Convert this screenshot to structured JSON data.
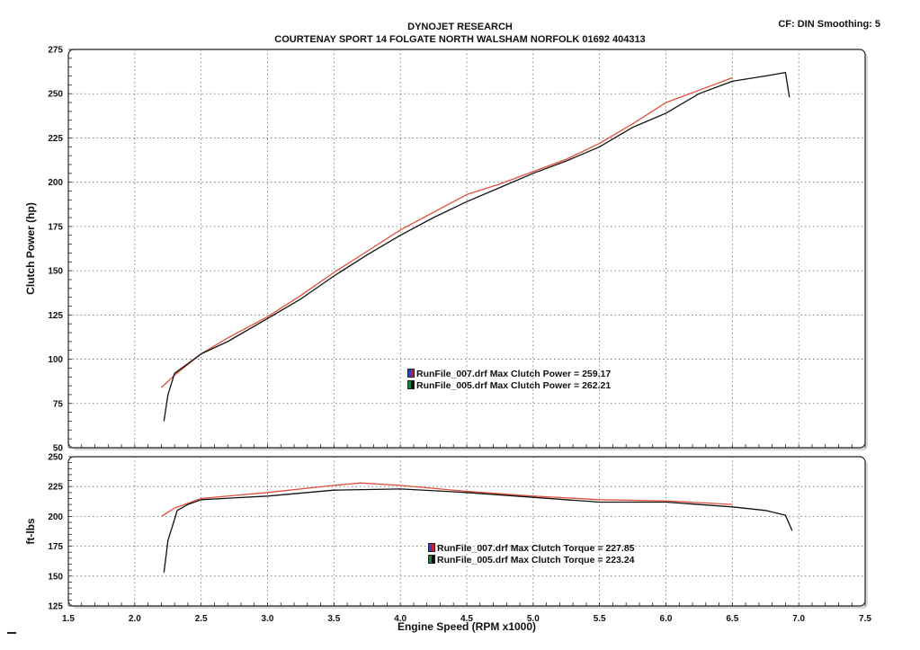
{
  "header": {
    "title": "DYNOJET RESEARCH",
    "subtitle": "COURTENAY SPORT 14 FOLGATE NORTH WALSHAM NORFOLK 01692 404313",
    "cf": "CF: DIN  Smoothing: 5"
  },
  "legend_power": [
    {
      "text": "RunFile_007.drf Max Clutch Power = 259.17",
      "swatch": [
        "#3040c0",
        "#c02030"
      ]
    },
    {
      "text": "RunFile_005.drf Max Clutch Power = 262.21",
      "swatch": [
        "#208040",
        "#111111"
      ]
    }
  ],
  "legend_torque": [
    {
      "text": "RunFile_007.drf Max Clutch Torque = 227.85",
      "swatch": [
        "#3040c0",
        "#c02030"
      ]
    },
    {
      "text": "RunFile_005.drf Max Clutch Torque = 223.24",
      "swatch": [
        "#208040",
        "#111111"
      ]
    }
  ],
  "chart_data": [
    {
      "type": "line",
      "ylabel": "Clutch Power (hp)",
      "xlim": [
        1.5,
        7.5
      ],
      "ylim": [
        50,
        275
      ],
      "yticks": [
        50,
        75,
        100,
        125,
        150,
        175,
        200,
        225,
        250,
        275
      ],
      "grid": true,
      "series": [
        {
          "name": "RunFile_007.drf",
          "color": "#e0503a",
          "x": [
            2.2,
            2.3,
            2.5,
            2.7,
            3.0,
            3.25,
            3.5,
            3.75,
            4.0,
            4.25,
            4.5,
            4.75,
            5.0,
            5.25,
            5.5,
            5.75,
            6.0,
            6.25,
            6.5
          ],
          "y": [
            84,
            91,
            103,
            112,
            124,
            136,
            149,
            161,
            173,
            183,
            193,
            199,
            206,
            213,
            222,
            233,
            245,
            252,
            259
          ]
        },
        {
          "name": "RunFile_005.drf",
          "color": "#111111",
          "x": [
            2.22,
            2.25,
            2.3,
            2.5,
            2.7,
            3.0,
            3.25,
            3.5,
            3.75,
            4.0,
            4.25,
            4.5,
            4.75,
            5.0,
            5.25,
            5.5,
            5.75,
            6.0,
            6.25,
            6.5,
            6.75,
            6.9,
            6.93
          ],
          "y": [
            65,
            80,
            92,
            103,
            110,
            123,
            134,
            147,
            159,
            170,
            180,
            189,
            197,
            205,
            212,
            220,
            231,
            239,
            250,
            257,
            260,
            262,
            248
          ]
        }
      ]
    },
    {
      "type": "line",
      "xlabel": "Engine Speed (RPM x1000)",
      "ylabel": "ft-lbs",
      "xlim": [
        1.5,
        7.5
      ],
      "ylim": [
        125,
        250
      ],
      "xticks": [
        1.5,
        2.0,
        2.5,
        3.0,
        3.5,
        4.0,
        4.5,
        5.0,
        5.5,
        6.0,
        6.5,
        7.0,
        7.5
      ],
      "xticklabels": [
        "1.5",
        "2.0",
        "2.5",
        "3.0",
        "3.5",
        "4.0",
        "4.5",
        "5.0",
        "5.5",
        "6.0",
        "6.5",
        "7.0",
        "7.5"
      ],
      "yticks": [
        125,
        150,
        175,
        200,
        225,
        250
      ],
      "grid": true,
      "series": [
        {
          "name": "RunFile_007.drf",
          "color": "#e0503a",
          "x": [
            2.2,
            2.3,
            2.5,
            3.0,
            3.5,
            3.7,
            4.0,
            4.5,
            5.0,
            5.5,
            6.0,
            6.5
          ],
          "y": [
            200,
            207,
            215,
            220,
            226,
            228,
            226,
            221,
            217,
            214,
            213,
            210
          ]
        },
        {
          "name": "RunFile_005.drf",
          "color": "#111111",
          "x": [
            2.22,
            2.25,
            2.32,
            2.4,
            2.5,
            3.0,
            3.5,
            4.0,
            4.5,
            5.0,
            5.5,
            6.0,
            6.5,
            6.75,
            6.9,
            6.95
          ],
          "y": [
            153,
            180,
            205,
            210,
            214,
            217,
            222,
            223,
            220,
            216,
            212,
            212,
            208,
            205,
            201,
            188
          ]
        }
      ]
    }
  ]
}
